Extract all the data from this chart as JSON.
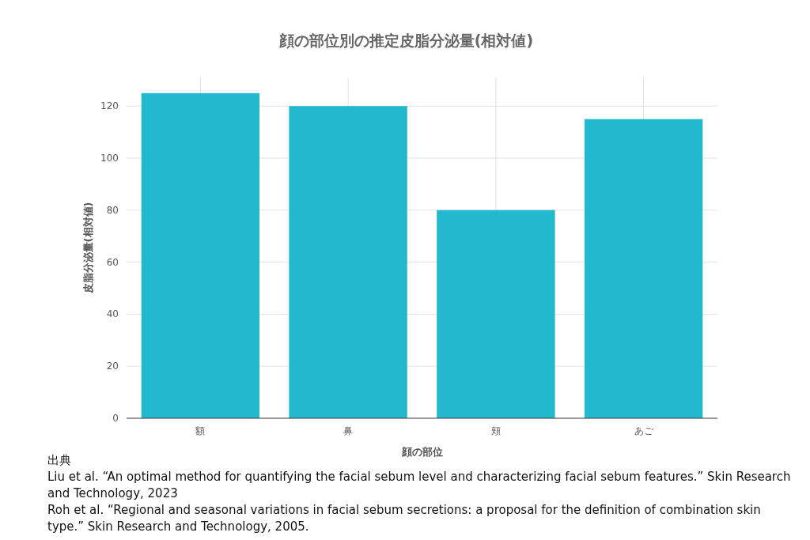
{
  "chart_data": {
    "type": "bar",
    "title": "顔の部位別の推定皮脂分泌量(相対値)",
    "xlabel": "顔の部位",
    "ylabel": "皮脂分泌量(相対値)",
    "categories": [
      "額",
      "鼻",
      "頬",
      "あご"
    ],
    "values": [
      125,
      120,
      80,
      115
    ],
    "color": "#22b8cd",
    "ylim": [
      0,
      131
    ],
    "yticks": [
      0,
      20,
      40,
      60,
      80,
      100,
      120
    ],
    "grid": true,
    "annotations": [
      "出典",
      "Liu et al. “An optimal method for quantifying the facial sebum level and characterizing facial sebum features.” Skin Research and Technology, 2023",
      "Roh et al. “Regional and seasonal variations in facial sebum secretions: a proposal for the definition of combination skin type.” Skin Research and Technology, 2005."
    ]
  }
}
